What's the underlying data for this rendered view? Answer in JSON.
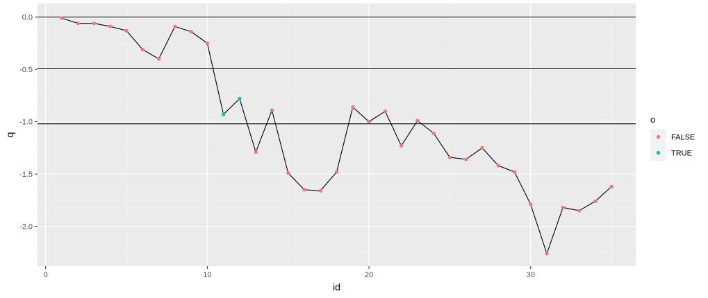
{
  "chart_data": {
    "type": "scatter",
    "xlabel": "id",
    "ylabel": "q",
    "xlim": [
      -0.5,
      36.5
    ],
    "ylim": [
      -2.38,
      0.13
    ],
    "x_ticks": [
      0,
      10,
      20,
      30
    ],
    "x_tick_labels": [
      "0",
      "10",
      "20",
      "30"
    ],
    "y_ticks": [
      0.0,
      -0.5,
      -1.0,
      -1.5,
      -2.0
    ],
    "y_tick_labels": [
      "0.0",
      "-0.5",
      "-1.0",
      "-1.5",
      "-2.0"
    ],
    "grid": true,
    "connecting_line": true,
    "hlines": [
      0.0,
      -0.49,
      -1.02
    ],
    "legend": {
      "title": "o",
      "placement": "right",
      "entries": [
        {
          "label": "FALSE",
          "color": "#F8766D"
        },
        {
          "label": "TRUE",
          "color": "#00BFC4"
        }
      ]
    },
    "points": [
      {
        "x": 1,
        "y": -0.01,
        "o": "FALSE"
      },
      {
        "x": 2,
        "y": -0.06,
        "o": "FALSE"
      },
      {
        "x": 3,
        "y": -0.06,
        "o": "FALSE"
      },
      {
        "x": 4,
        "y": -0.09,
        "o": "FALSE"
      },
      {
        "x": 5,
        "y": -0.13,
        "o": "FALSE"
      },
      {
        "x": 6,
        "y": -0.31,
        "o": "FALSE"
      },
      {
        "x": 7,
        "y": -0.4,
        "o": "FALSE"
      },
      {
        "x": 8,
        "y": -0.09,
        "o": "FALSE"
      },
      {
        "x": 9,
        "y": -0.14,
        "o": "FALSE"
      },
      {
        "x": 10,
        "y": -0.25,
        "o": "FALSE"
      },
      {
        "x": 11,
        "y": -0.93,
        "o": "TRUE"
      },
      {
        "x": 12,
        "y": -0.78,
        "o": "TRUE"
      },
      {
        "x": 13,
        "y": -1.29,
        "o": "FALSE"
      },
      {
        "x": 14,
        "y": -0.89,
        "o": "FALSE"
      },
      {
        "x": 15,
        "y": -1.49,
        "o": "FALSE"
      },
      {
        "x": 16,
        "y": -1.65,
        "o": "FALSE"
      },
      {
        "x": 17,
        "y": -1.66,
        "o": "FALSE"
      },
      {
        "x": 18,
        "y": -1.48,
        "o": "FALSE"
      },
      {
        "x": 19,
        "y": -0.86,
        "o": "FALSE"
      },
      {
        "x": 20,
        "y": -1.0,
        "o": "FALSE"
      },
      {
        "x": 21,
        "y": -0.9,
        "o": "FALSE"
      },
      {
        "x": 22,
        "y": -1.23,
        "o": "FALSE"
      },
      {
        "x": 23,
        "y": -0.99,
        "o": "FALSE"
      },
      {
        "x": 24,
        "y": -1.11,
        "o": "FALSE"
      },
      {
        "x": 25,
        "y": -1.34,
        "o": "FALSE"
      },
      {
        "x": 26,
        "y": -1.36,
        "o": "FALSE"
      },
      {
        "x": 27,
        "y": -1.25,
        "o": "FALSE"
      },
      {
        "x": 28,
        "y": -1.42,
        "o": "FALSE"
      },
      {
        "x": 29,
        "y": -1.48,
        "o": "FALSE"
      },
      {
        "x": 30,
        "y": -1.79,
        "o": "FALSE"
      },
      {
        "x": 31,
        "y": -2.26,
        "o": "FALSE"
      },
      {
        "x": 32,
        "y": -1.82,
        "o": "FALSE"
      },
      {
        "x": 33,
        "y": -1.85,
        "o": "FALSE"
      },
      {
        "x": 34,
        "y": -1.76,
        "o": "FALSE"
      },
      {
        "x": 35,
        "y": -1.62,
        "o": "FALSE"
      }
    ]
  }
}
